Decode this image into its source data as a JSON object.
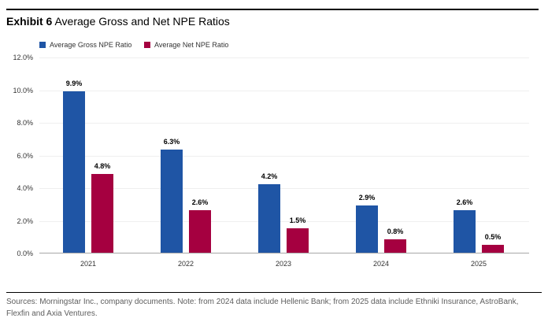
{
  "header": {
    "exhibit_label": "Exhibit 6",
    "title": " Average Gross and Net NPE Ratios"
  },
  "legend": [
    {
      "label": "Average Gross NPE Ratio",
      "color": "#1f55a5"
    },
    {
      "label": "Average Net NPE Ratio",
      "color": "#a50040"
    }
  ],
  "chart_data": {
    "type": "bar",
    "title": "Average Gross and Net NPE Ratios",
    "categories": [
      "2021",
      "2022",
      "2023",
      "2024",
      "2025"
    ],
    "series": [
      {
        "name": "Average Gross NPE Ratio",
        "color": "#1f55a5",
        "values": [
          9.9,
          6.3,
          4.2,
          2.9,
          2.6
        ]
      },
      {
        "name": "Average Net NPE Ratio",
        "color": "#a50040",
        "values": [
          4.8,
          2.6,
          1.5,
          0.8,
          0.5
        ]
      }
    ],
    "value_labels": [
      [
        "9.9%",
        "6.3%",
        "4.2%",
        "2.9%",
        "2.6%"
      ],
      [
        "4.8%",
        "2.6%",
        "1.5%",
        "0.8%",
        "0.5%"
      ]
    ],
    "y_ticks": [
      "0.0%",
      "2.0%",
      "4.0%",
      "6.0%",
      "8.0%",
      "10.0%",
      "12.0%"
    ],
    "ylim": [
      0,
      12
    ],
    "grid": true,
    "legend_position": "top-left"
  },
  "footer": {
    "text": "Sources: Morningstar Inc., company documents. Note: from 2024 data include Hellenic Bank; from 2025 data include Ethniki Insurance, AstroBank, Flexfin and Axia Ventures."
  }
}
